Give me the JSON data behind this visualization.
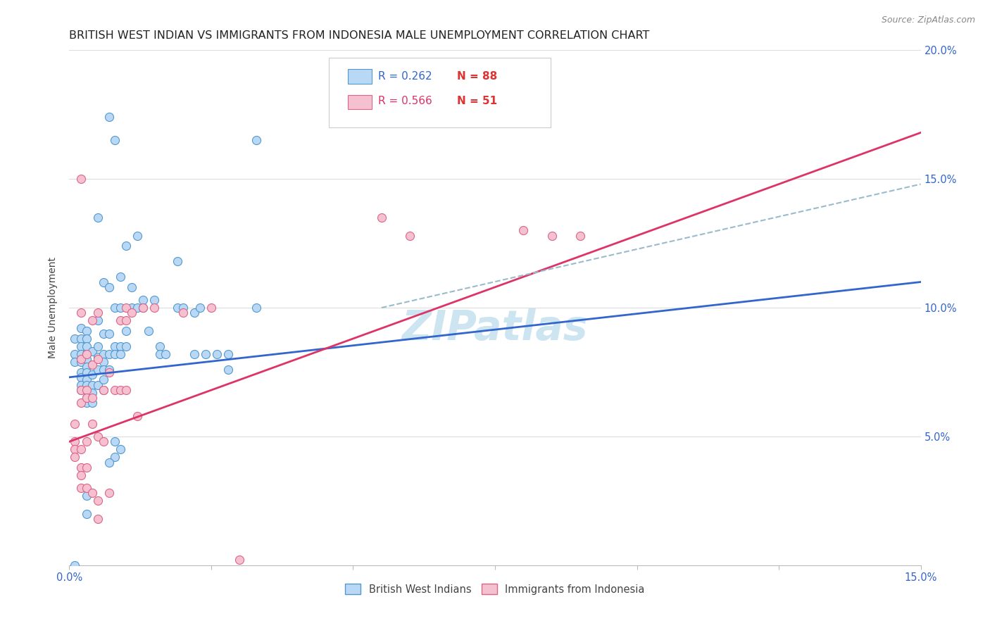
{
  "title": "BRITISH WEST INDIAN VS IMMIGRANTS FROM INDONESIA MALE UNEMPLOYMENT CORRELATION CHART",
  "source": "Source: ZipAtlas.com",
  "ylabel": "Male Unemployment",
  "xlim": [
    0.0,
    0.15
  ],
  "ylim": [
    0.0,
    0.2
  ],
  "xticks": [
    0.0,
    0.025,
    0.05,
    0.075,
    0.1,
    0.125,
    0.15
  ],
  "yticks": [
    0.05,
    0.1,
    0.15,
    0.2
  ],
  "right_ytick_labels": [
    "5.0%",
    "10.0%",
    "15.0%",
    "20.0%"
  ],
  "blue_scatter": [
    [
      0.001,
      0.088
    ],
    [
      0.001,
      0.082
    ],
    [
      0.001,
      0.079
    ],
    [
      0.002,
      0.092
    ],
    [
      0.002,
      0.088
    ],
    [
      0.002,
      0.085
    ],
    [
      0.002,
      0.082
    ],
    [
      0.002,
      0.079
    ],
    [
      0.002,
      0.075
    ],
    [
      0.002,
      0.073
    ],
    [
      0.002,
      0.07
    ],
    [
      0.002,
      0.068
    ],
    [
      0.003,
      0.091
    ],
    [
      0.003,
      0.088
    ],
    [
      0.003,
      0.085
    ],
    [
      0.003,
      0.082
    ],
    [
      0.003,
      0.08
    ],
    [
      0.003,
      0.077
    ],
    [
      0.003,
      0.075
    ],
    [
      0.003,
      0.072
    ],
    [
      0.003,
      0.07
    ],
    [
      0.003,
      0.068
    ],
    [
      0.003,
      0.065
    ],
    [
      0.003,
      0.063
    ],
    [
      0.004,
      0.083
    ],
    [
      0.004,
      0.078
    ],
    [
      0.004,
      0.074
    ],
    [
      0.004,
      0.07
    ],
    [
      0.004,
      0.067
    ],
    [
      0.004,
      0.063
    ],
    [
      0.005,
      0.135
    ],
    [
      0.005,
      0.095
    ],
    [
      0.005,
      0.085
    ],
    [
      0.005,
      0.081
    ],
    [
      0.005,
      0.076
    ],
    [
      0.005,
      0.07
    ],
    [
      0.006,
      0.11
    ],
    [
      0.006,
      0.09
    ],
    [
      0.006,
      0.082
    ],
    [
      0.006,
      0.079
    ],
    [
      0.006,
      0.076
    ],
    [
      0.006,
      0.072
    ],
    [
      0.006,
      0.068
    ],
    [
      0.007,
      0.174
    ],
    [
      0.007,
      0.108
    ],
    [
      0.007,
      0.09
    ],
    [
      0.007,
      0.082
    ],
    [
      0.007,
      0.076
    ],
    [
      0.008,
      0.165
    ],
    [
      0.008,
      0.1
    ],
    [
      0.008,
      0.085
    ],
    [
      0.008,
      0.082
    ],
    [
      0.009,
      0.112
    ],
    [
      0.009,
      0.1
    ],
    [
      0.009,
      0.085
    ],
    [
      0.009,
      0.082
    ],
    [
      0.01,
      0.124
    ],
    [
      0.01,
      0.091
    ],
    [
      0.01,
      0.085
    ],
    [
      0.011,
      0.108
    ],
    [
      0.011,
      0.1
    ],
    [
      0.012,
      0.128
    ],
    [
      0.012,
      0.1
    ],
    [
      0.013,
      0.103
    ],
    [
      0.013,
      0.1
    ],
    [
      0.014,
      0.091
    ],
    [
      0.015,
      0.103
    ],
    [
      0.016,
      0.085
    ],
    [
      0.016,
      0.082
    ],
    [
      0.017,
      0.082
    ],
    [
      0.019,
      0.118
    ],
    [
      0.019,
      0.1
    ],
    [
      0.02,
      0.1
    ],
    [
      0.022,
      0.098
    ],
    [
      0.022,
      0.082
    ],
    [
      0.023,
      0.1
    ],
    [
      0.024,
      0.082
    ],
    [
      0.026,
      0.082
    ],
    [
      0.028,
      0.076
    ],
    [
      0.028,
      0.082
    ],
    [
      0.033,
      0.165
    ],
    [
      0.033,
      0.1
    ],
    [
      0.008,
      0.048
    ],
    [
      0.008,
      0.042
    ],
    [
      0.009,
      0.045
    ],
    [
      0.003,
      0.027
    ],
    [
      0.003,
      0.02
    ],
    [
      0.001,
      0.0
    ],
    [
      0.007,
      0.04
    ]
  ],
  "pink_scatter": [
    [
      0.001,
      0.055
    ],
    [
      0.001,
      0.048
    ],
    [
      0.001,
      0.045
    ],
    [
      0.001,
      0.042
    ],
    [
      0.002,
      0.15
    ],
    [
      0.002,
      0.098
    ],
    [
      0.002,
      0.08
    ],
    [
      0.002,
      0.068
    ],
    [
      0.002,
      0.063
    ],
    [
      0.002,
      0.045
    ],
    [
      0.002,
      0.038
    ],
    [
      0.002,
      0.035
    ],
    [
      0.003,
      0.082
    ],
    [
      0.003,
      0.068
    ],
    [
      0.003,
      0.065
    ],
    [
      0.003,
      0.048
    ],
    [
      0.003,
      0.038
    ],
    [
      0.004,
      0.095
    ],
    [
      0.004,
      0.078
    ],
    [
      0.004,
      0.065
    ],
    [
      0.004,
      0.055
    ],
    [
      0.005,
      0.098
    ],
    [
      0.005,
      0.08
    ],
    [
      0.005,
      0.05
    ],
    [
      0.005,
      0.025
    ],
    [
      0.005,
      0.018
    ],
    [
      0.006,
      0.068
    ],
    [
      0.006,
      0.048
    ],
    [
      0.007,
      0.075
    ],
    [
      0.007,
      0.028
    ],
    [
      0.008,
      0.068
    ],
    [
      0.009,
      0.095
    ],
    [
      0.009,
      0.068
    ],
    [
      0.01,
      0.1
    ],
    [
      0.01,
      0.095
    ],
    [
      0.01,
      0.068
    ],
    [
      0.011,
      0.098
    ],
    [
      0.012,
      0.058
    ],
    [
      0.013,
      0.1
    ],
    [
      0.015,
      0.1
    ],
    [
      0.02,
      0.098
    ],
    [
      0.025,
      0.1
    ],
    [
      0.055,
      0.135
    ],
    [
      0.06,
      0.128
    ],
    [
      0.08,
      0.13
    ],
    [
      0.085,
      0.128
    ],
    [
      0.09,
      0.128
    ],
    [
      0.03,
      0.002
    ],
    [
      0.002,
      0.03
    ],
    [
      0.003,
      0.03
    ],
    [
      0.004,
      0.028
    ]
  ],
  "blue_line": {
    "x0": 0.0,
    "y0": 0.073,
    "x1": 0.15,
    "y1": 0.11
  },
  "pink_line": {
    "x0": 0.0,
    "y0": 0.048,
    "x1": 0.15,
    "y1": 0.168
  },
  "dashed_line": {
    "x0": 0.055,
    "y0": 0.1,
    "x1": 0.15,
    "y1": 0.148
  },
  "scatter_size": 75,
  "blue_color": "#b8d8f5",
  "blue_edge": "#5599cc",
  "pink_color": "#f5c0d0",
  "pink_edge": "#dd6688",
  "blue_line_color": "#3366cc",
  "pink_line_color": "#dd3366",
  "dashed_line_color": "#99bbcc",
  "watermark": "ZIPatlas",
  "watermark_color": "#cce5f0",
  "background_color": "#ffffff",
  "grid_color": "#dddddd",
  "title_fontsize": 11.5,
  "axis_label_fontsize": 10,
  "tick_fontsize": 10.5,
  "tick_color": "#3366cc"
}
